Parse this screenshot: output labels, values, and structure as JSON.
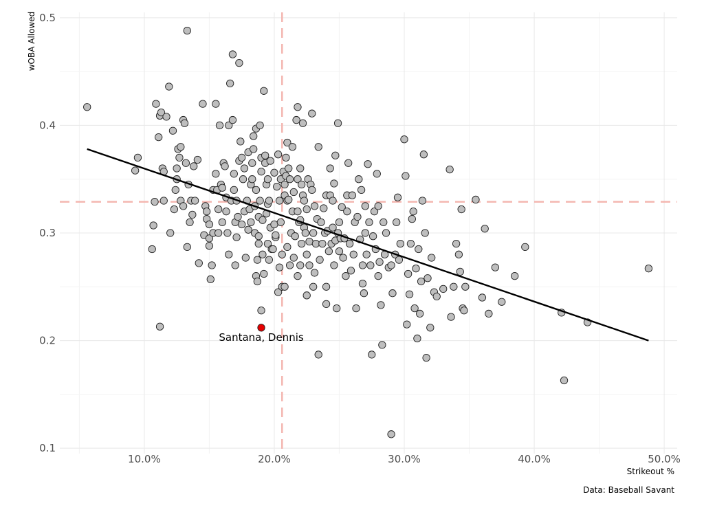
{
  "chart_data": {
    "type": "scatter",
    "title": "",
    "xlabel": "Strikeout %",
    "ylabel": "wOBA Allowed",
    "caption": "Data: Baseball Savant",
    "xlim": [
      0.035,
      0.51
    ],
    "ylim": [
      0.095,
      0.505
    ],
    "x_ticks": [
      0.1,
      0.2,
      0.3,
      0.4,
      0.5
    ],
    "x_tick_labels": [
      "10.0%",
      "20.0%",
      "30.0%",
      "40.0%",
      "50.0%"
    ],
    "y_ticks": [
      0.1,
      0.2,
      0.3,
      0.4,
      0.5
    ],
    "y_tick_labels": [
      "0.1",
      "0.2",
      "0.3",
      "0.4",
      "0.5"
    ],
    "grid": true,
    "colors": {
      "point_fill": "#bebebe",
      "point_stroke": "#222222",
      "highlight": "#e60000",
      "reference": "#f4b6b0",
      "trend": "#000000",
      "grid_major": "#e8e8e8",
      "grid_minor": "#f3f3f3"
    },
    "reference_lines": {
      "x": 0.206,
      "y": 0.329
    },
    "trend_line": {
      "x": [
        0.056,
        0.488
      ],
      "y": [
        0.378,
        0.2
      ]
    },
    "highlight": {
      "label": "Santana, Dennis",
      "x": 0.19,
      "y": 0.212
    },
    "points": [
      [
        0.056,
        0.417
      ],
      [
        0.093,
        0.358
      ],
      [
        0.095,
        0.37
      ],
      [
        0.106,
        0.285
      ],
      [
        0.107,
        0.307
      ],
      [
        0.108,
        0.329
      ],
      [
        0.109,
        0.42
      ],
      [
        0.111,
        0.389
      ],
      [
        0.112,
        0.409
      ],
      [
        0.113,
        0.412
      ],
      [
        0.114,
        0.36
      ],
      [
        0.115,
        0.357
      ],
      [
        0.112,
        0.213
      ],
      [
        0.115,
        0.33
      ],
      [
        0.117,
        0.408
      ],
      [
        0.119,
        0.436
      ],
      [
        0.12,
        0.3
      ],
      [
        0.122,
        0.395
      ],
      [
        0.123,
        0.322
      ],
      [
        0.124,
        0.34
      ],
      [
        0.125,
        0.35
      ],
      [
        0.125,
        0.36
      ],
      [
        0.126,
        0.378
      ],
      [
        0.127,
        0.37
      ],
      [
        0.128,
        0.38
      ],
      [
        0.128,
        0.33
      ],
      [
        0.13,
        0.405
      ],
      [
        0.13,
        0.325
      ],
      [
        0.131,
        0.402
      ],
      [
        0.132,
        0.365
      ],
      [
        0.133,
        0.488
      ],
      [
        0.133,
        0.287
      ],
      [
        0.134,
        0.345
      ],
      [
        0.135,
        0.31
      ],
      [
        0.136,
        0.33
      ],
      [
        0.137,
        0.317
      ],
      [
        0.138,
        0.362
      ],
      [
        0.139,
        0.33
      ],
      [
        0.141,
        0.368
      ],
      [
        0.142,
        0.272
      ],
      [
        0.145,
        0.42
      ],
      [
        0.146,
        0.298
      ],
      [
        0.147,
        0.325
      ],
      [
        0.148,
        0.32
      ],
      [
        0.148,
        0.313
      ],
      [
        0.15,
        0.295
      ],
      [
        0.15,
        0.288
      ],
      [
        0.15,
        0.308
      ],
      [
        0.151,
        0.257
      ],
      [
        0.152,
        0.27
      ],
      [
        0.153,
        0.3
      ],
      [
        0.153,
        0.34
      ],
      [
        0.155,
        0.355
      ],
      [
        0.155,
        0.42
      ],
      [
        0.156,
        0.34
      ],
      [
        0.157,
        0.322
      ],
      [
        0.157,
        0.3
      ],
      [
        0.158,
        0.4
      ],
      [
        0.159,
        0.345
      ],
      [
        0.16,
        0.342
      ],
      [
        0.16,
        0.31
      ],
      [
        0.161,
        0.365
      ],
      [
        0.162,
        0.362
      ],
      [
        0.163,
        0.32
      ],
      [
        0.163,
        0.333
      ],
      [
        0.164,
        0.3
      ],
      [
        0.165,
        0.28
      ],
      [
        0.165,
        0.4
      ],
      [
        0.166,
        0.439
      ],
      [
        0.167,
        0.33
      ],
      [
        0.168,
        0.466
      ],
      [
        0.168,
        0.405
      ],
      [
        0.169,
        0.34
      ],
      [
        0.169,
        0.355
      ],
      [
        0.17,
        0.27
      ],
      [
        0.17,
        0.31
      ],
      [
        0.171,
        0.296
      ],
      [
        0.171,
        0.33
      ],
      [
        0.172,
        0.315
      ],
      [
        0.173,
        0.458
      ],
      [
        0.173,
        0.367
      ],
      [
        0.174,
        0.385
      ],
      [
        0.175,
        0.308
      ],
      [
        0.175,
        0.37
      ],
      [
        0.176,
        0.35
      ],
      [
        0.177,
        0.32
      ],
      [
        0.177,
        0.36
      ],
      [
        0.178,
        0.277
      ],
      [
        0.179,
        0.33
      ],
      [
        0.18,
        0.303
      ],
      [
        0.18,
        0.375
      ],
      [
        0.181,
        0.322
      ],
      [
        0.182,
        0.345
      ],
      [
        0.182,
        0.31
      ],
      [
        0.183,
        0.35
      ],
      [
        0.183,
        0.365
      ],
      [
        0.184,
        0.39
      ],
      [
        0.184,
        0.378
      ],
      [
        0.185,
        0.3
      ],
      [
        0.185,
        0.325
      ],
      [
        0.186,
        0.397
      ],
      [
        0.186,
        0.34
      ],
      [
        0.186,
        0.26
      ],
      [
        0.187,
        0.275
      ],
      [
        0.187,
        0.255
      ],
      [
        0.188,
        0.297
      ],
      [
        0.188,
        0.29
      ],
      [
        0.188,
        0.315
      ],
      [
        0.189,
        0.4
      ],
      [
        0.189,
        0.33
      ],
      [
        0.19,
        0.37
      ],
      [
        0.19,
        0.357
      ],
      [
        0.19,
        0.228
      ],
      [
        0.191,
        0.312
      ],
      [
        0.191,
        0.28
      ],
      [
        0.192,
        0.432
      ],
      [
        0.192,
        0.262
      ],
      [
        0.193,
        0.372
      ],
      [
        0.193,
        0.365
      ],
      [
        0.194,
        0.318
      ],
      [
        0.194,
        0.345
      ],
      [
        0.195,
        0.35
      ],
      [
        0.195,
        0.327
      ],
      [
        0.195,
        0.29
      ],
      [
        0.196,
        0.275
      ],
      [
        0.196,
        0.33
      ],
      [
        0.197,
        0.367
      ],
      [
        0.197,
        0.305
      ],
      [
        0.198,
        0.285
      ],
      [
        0.199,
        0.285
      ],
      [
        0.2,
        0.308
      ],
      [
        0.2,
        0.356
      ],
      [
        0.201,
        0.296
      ],
      [
        0.201,
        0.298
      ],
      [
        0.202,
        0.343
      ],
      [
        0.203,
        0.373
      ],
      [
        0.203,
        0.245
      ],
      [
        0.204,
        0.33
      ],
      [
        0.204,
        0.268
      ],
      [
        0.205,
        0.35
      ],
      [
        0.205,
        0.31
      ],
      [
        0.206,
        0.28
      ],
      [
        0.206,
        0.25
      ],
      [
        0.207,
        0.357
      ],
      [
        0.208,
        0.345
      ],
      [
        0.208,
        0.335
      ],
      [
        0.208,
        0.25
      ],
      [
        0.209,
        0.37
      ],
      [
        0.209,
        0.353
      ],
      [
        0.21,
        0.384
      ],
      [
        0.21,
        0.33
      ],
      [
        0.21,
        0.287
      ],
      [
        0.211,
        0.36
      ],
      [
        0.211,
        0.331
      ],
      [
        0.212,
        0.35
      ],
      [
        0.212,
        0.27
      ],
      [
        0.213,
        0.3
      ],
      [
        0.214,
        0.32
      ],
      [
        0.214,
        0.38
      ],
      [
        0.215,
        0.338
      ],
      [
        0.215,
        0.277
      ],
      [
        0.216,
        0.297
      ],
      [
        0.217,
        0.405
      ],
      [
        0.218,
        0.417
      ],
      [
        0.218,
        0.35
      ],
      [
        0.218,
        0.32
      ],
      [
        0.218,
        0.26
      ],
      [
        0.219,
        0.31
      ],
      [
        0.22,
        0.312
      ],
      [
        0.22,
        0.36
      ],
      [
        0.22,
        0.27
      ],
      [
        0.221,
        0.345
      ],
      [
        0.221,
        0.29
      ],
      [
        0.222,
        0.402
      ],
      [
        0.222,
        0.335
      ],
      [
        0.223,
        0.305
      ],
      [
        0.223,
        0.33
      ],
      [
        0.224,
        0.3
      ],
      [
        0.225,
        0.322
      ],
      [
        0.225,
        0.28
      ],
      [
        0.225,
        0.242
      ],
      [
        0.226,
        0.35
      ],
      [
        0.227,
        0.27
      ],
      [
        0.227,
        0.292
      ],
      [
        0.228,
        0.345
      ],
      [
        0.229,
        0.411
      ],
      [
        0.229,
        0.34
      ],
      [
        0.23,
        0.25
      ],
      [
        0.23,
        0.3
      ],
      [
        0.231,
        0.325
      ],
      [
        0.231,
        0.263
      ],
      [
        0.232,
        0.29
      ],
      [
        0.233,
        0.313
      ],
      [
        0.234,
        0.38
      ],
      [
        0.234,
        0.187
      ],
      [
        0.235,
        0.275
      ],
      [
        0.236,
        0.31
      ],
      [
        0.237,
        0.29
      ],
      [
        0.238,
        0.323
      ],
      [
        0.239,
        0.3
      ],
      [
        0.24,
        0.335
      ],
      [
        0.24,
        0.25
      ],
      [
        0.24,
        0.234
      ],
      [
        0.241,
        0.302
      ],
      [
        0.242,
        0.283
      ],
      [
        0.243,
        0.36
      ],
      [
        0.243,
        0.335
      ],
      [
        0.244,
        0.29
      ],
      [
        0.245,
        0.33
      ],
      [
        0.245,
        0.305
      ],
      [
        0.246,
        0.27
      ],
      [
        0.246,
        0.346
      ],
      [
        0.247,
        0.372
      ],
      [
        0.247,
        0.293
      ],
      [
        0.248,
        0.23
      ],
      [
        0.249,
        0.402
      ],
      [
        0.249,
        0.3
      ],
      [
        0.25,
        0.283
      ],
      [
        0.25,
        0.31
      ],
      [
        0.251,
        0.295
      ],
      [
        0.252,
        0.324
      ],
      [
        0.253,
        0.277
      ],
      [
        0.254,
        0.295
      ],
      [
        0.255,
        0.26
      ],
      [
        0.256,
        0.32
      ],
      [
        0.256,
        0.335
      ],
      [
        0.257,
        0.365
      ],
      [
        0.258,
        0.29
      ],
      [
        0.259,
        0.265
      ],
      [
        0.26,
        0.335
      ],
      [
        0.261,
        0.28
      ],
      [
        0.262,
        0.31
      ],
      [
        0.263,
        0.23
      ],
      [
        0.264,
        0.315
      ],
      [
        0.265,
        0.35
      ],
      [
        0.266,
        0.294
      ],
      [
        0.267,
        0.34
      ],
      [
        0.268,
        0.27
      ],
      [
        0.268,
        0.253
      ],
      [
        0.269,
        0.244
      ],
      [
        0.27,
        0.3
      ],
      [
        0.27,
        0.325
      ],
      [
        0.271,
        0.28
      ],
      [
        0.272,
        0.364
      ],
      [
        0.273,
        0.31
      ],
      [
        0.274,
        0.27
      ],
      [
        0.275,
        0.187
      ],
      [
        0.276,
        0.297
      ],
      [
        0.277,
        0.32
      ],
      [
        0.278,
        0.285
      ],
      [
        0.279,
        0.355
      ],
      [
        0.28,
        0.325
      ],
      [
        0.28,
        0.26
      ],
      [
        0.281,
        0.273
      ],
      [
        0.282,
        0.233
      ],
      [
        0.283,
        0.196
      ],
      [
        0.284,
        0.31
      ],
      [
        0.285,
        0.28
      ],
      [
        0.286,
        0.3
      ],
      [
        0.288,
        0.268
      ],
      [
        0.29,
        0.113
      ],
      [
        0.29,
        0.27
      ],
      [
        0.291,
        0.244
      ],
      [
        0.293,
        0.28
      ],
      [
        0.294,
        0.31
      ],
      [
        0.295,
        0.333
      ],
      [
        0.296,
        0.275
      ],
      [
        0.297,
        0.29
      ],
      [
        0.3,
        0.387
      ],
      [
        0.301,
        0.353
      ],
      [
        0.302,
        0.215
      ],
      [
        0.303,
        0.262
      ],
      [
        0.304,
        0.243
      ],
      [
        0.305,
        0.29
      ],
      [
        0.306,
        0.313
      ],
      [
        0.307,
        0.32
      ],
      [
        0.308,
        0.23
      ],
      [
        0.309,
        0.267
      ],
      [
        0.31,
        0.202
      ],
      [
        0.311,
        0.285
      ],
      [
        0.312,
        0.225
      ],
      [
        0.313,
        0.255
      ],
      [
        0.314,
        0.33
      ],
      [
        0.315,
        0.373
      ],
      [
        0.316,
        0.3
      ],
      [
        0.317,
        0.184
      ],
      [
        0.318,
        0.258
      ],
      [
        0.32,
        0.212
      ],
      [
        0.321,
        0.277
      ],
      [
        0.323,
        0.245
      ],
      [
        0.325,
        0.241
      ],
      [
        0.33,
        0.248
      ],
      [
        0.335,
        0.359
      ],
      [
        0.336,
        0.222
      ],
      [
        0.338,
        0.25
      ],
      [
        0.34,
        0.29
      ],
      [
        0.342,
        0.28
      ],
      [
        0.343,
        0.264
      ],
      [
        0.344,
        0.322
      ],
      [
        0.345,
        0.23
      ],
      [
        0.346,
        0.228
      ],
      [
        0.347,
        0.25
      ],
      [
        0.355,
        0.331
      ],
      [
        0.36,
        0.24
      ],
      [
        0.362,
        0.304
      ],
      [
        0.365,
        0.225
      ],
      [
        0.37,
        0.268
      ],
      [
        0.375,
        0.236
      ],
      [
        0.385,
        0.26
      ],
      [
        0.393,
        0.287
      ],
      [
        0.421,
        0.226
      ],
      [
        0.423,
        0.163
      ],
      [
        0.441,
        0.217
      ],
      [
        0.488,
        0.267
      ]
    ]
  }
}
